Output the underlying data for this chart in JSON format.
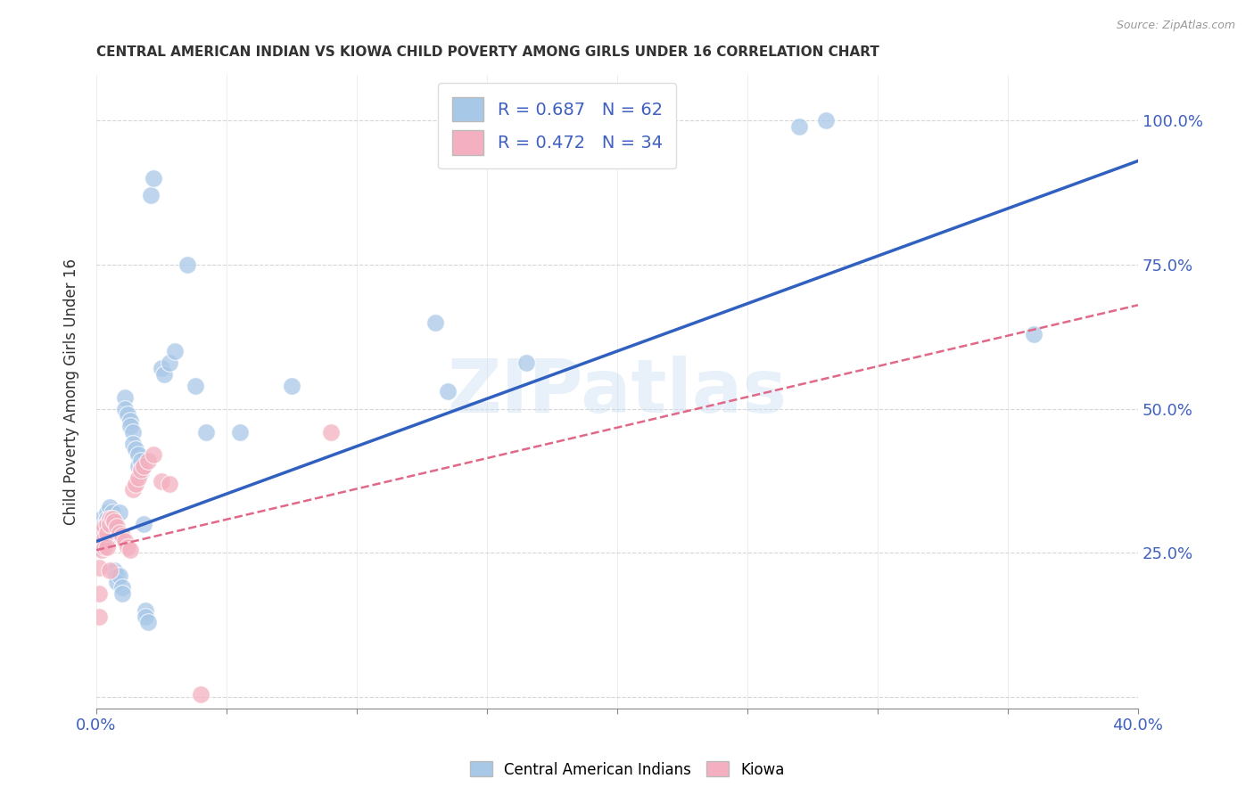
{
  "title": "CENTRAL AMERICAN INDIAN VS KIOWA CHILD POVERTY AMONG GIRLS UNDER 16 CORRELATION CHART",
  "source": "Source: ZipAtlas.com",
  "ylabel": "Child Poverty Among Girls Under 16",
  "x_min": 0.0,
  "x_max": 0.4,
  "y_min": -0.02,
  "y_max": 1.08,
  "x_ticks": [
    0.0,
    0.05,
    0.1,
    0.15,
    0.2,
    0.25,
    0.3,
    0.35,
    0.4
  ],
  "y_ticks": [
    0.0,
    0.25,
    0.5,
    0.75,
    1.0
  ],
  "y_tick_labels_right": [
    "",
    "25.0%",
    "50.0%",
    "75.0%",
    "100.0%"
  ],
  "watermark": "ZIPatlas",
  "blue_color": "#a8c8e8",
  "pink_color": "#f4b0c0",
  "blue_line_color": "#3060c0",
  "pink_line_color": "#e06888",
  "background_color": "#ffffff",
  "grid_color": "#cccccc",
  "blue_scatter": [
    [
      0.001,
      0.28
    ],
    [
      0.001,
      0.27
    ],
    [
      0.001,
      0.26
    ],
    [
      0.002,
      0.31
    ],
    [
      0.002,
      0.29
    ],
    [
      0.002,
      0.28
    ],
    [
      0.003,
      0.3
    ],
    [
      0.003,
      0.29
    ],
    [
      0.003,
      0.28
    ],
    [
      0.004,
      0.32
    ],
    [
      0.004,
      0.31
    ],
    [
      0.004,
      0.3
    ],
    [
      0.004,
      0.29
    ],
    [
      0.005,
      0.33
    ],
    [
      0.005,
      0.31
    ],
    [
      0.005,
      0.3
    ],
    [
      0.005,
      0.29
    ],
    [
      0.005,
      0.28
    ],
    [
      0.006,
      0.32
    ],
    [
      0.006,
      0.31
    ],
    [
      0.006,
      0.3
    ],
    [
      0.007,
      0.31
    ],
    [
      0.007,
      0.3
    ],
    [
      0.007,
      0.22
    ],
    [
      0.008,
      0.21
    ],
    [
      0.008,
      0.2
    ],
    [
      0.009,
      0.32
    ],
    [
      0.009,
      0.21
    ],
    [
      0.01,
      0.19
    ],
    [
      0.01,
      0.18
    ],
    [
      0.011,
      0.52
    ],
    [
      0.011,
      0.5
    ],
    [
      0.012,
      0.49
    ],
    [
      0.013,
      0.48
    ],
    [
      0.013,
      0.47
    ],
    [
      0.014,
      0.46
    ],
    [
      0.014,
      0.44
    ],
    [
      0.015,
      0.43
    ],
    [
      0.016,
      0.42
    ],
    [
      0.016,
      0.4
    ],
    [
      0.017,
      0.39
    ],
    [
      0.017,
      0.41
    ],
    [
      0.018,
      0.3
    ],
    [
      0.019,
      0.15
    ],
    [
      0.019,
      0.14
    ],
    [
      0.02,
      0.13
    ],
    [
      0.021,
      0.87
    ],
    [
      0.022,
      0.9
    ],
    [
      0.025,
      0.57
    ],
    [
      0.026,
      0.56
    ],
    [
      0.028,
      0.58
    ],
    [
      0.03,
      0.6
    ],
    [
      0.035,
      0.75
    ],
    [
      0.038,
      0.54
    ],
    [
      0.042,
      0.46
    ],
    [
      0.055,
      0.46
    ],
    [
      0.075,
      0.54
    ],
    [
      0.13,
      0.65
    ],
    [
      0.135,
      0.53
    ],
    [
      0.165,
      0.58
    ],
    [
      0.27,
      0.99
    ],
    [
      0.28,
      1.0
    ],
    [
      0.36,
      0.63
    ]
  ],
  "pink_scatter": [
    [
      0.001,
      0.225
    ],
    [
      0.001,
      0.18
    ],
    [
      0.001,
      0.14
    ],
    [
      0.002,
      0.285
    ],
    [
      0.002,
      0.265
    ],
    [
      0.002,
      0.255
    ],
    [
      0.003,
      0.295
    ],
    [
      0.003,
      0.275
    ],
    [
      0.003,
      0.26
    ],
    [
      0.004,
      0.3
    ],
    [
      0.004,
      0.285
    ],
    [
      0.004,
      0.26
    ],
    [
      0.005,
      0.31
    ],
    [
      0.005,
      0.3
    ],
    [
      0.005,
      0.22
    ],
    [
      0.006,
      0.31
    ],
    [
      0.007,
      0.305
    ],
    [
      0.008,
      0.295
    ],
    [
      0.009,
      0.285
    ],
    [
      0.01,
      0.28
    ],
    [
      0.011,
      0.27
    ],
    [
      0.012,
      0.26
    ],
    [
      0.013,
      0.255
    ],
    [
      0.014,
      0.36
    ],
    [
      0.015,
      0.37
    ],
    [
      0.016,
      0.38
    ],
    [
      0.017,
      0.395
    ],
    [
      0.018,
      0.4
    ],
    [
      0.02,
      0.41
    ],
    [
      0.022,
      0.42
    ],
    [
      0.025,
      0.375
    ],
    [
      0.028,
      0.37
    ],
    [
      0.04,
      0.005
    ],
    [
      0.09,
      0.46
    ]
  ],
  "blue_line_x": [
    0.0,
    0.4
  ],
  "blue_line_y": [
    0.27,
    0.93
  ],
  "pink_line_x": [
    0.0,
    0.4
  ],
  "pink_line_y": [
    0.255,
    0.68
  ]
}
